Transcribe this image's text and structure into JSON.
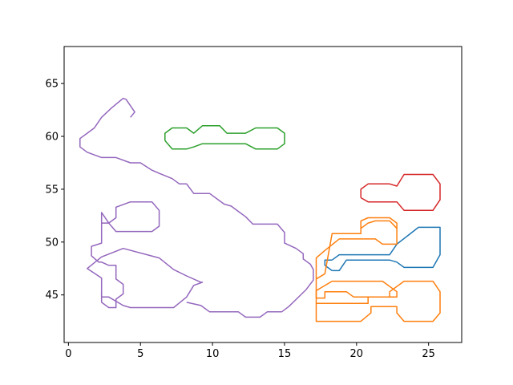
{
  "chart_data": {
    "type": "line",
    "title": "",
    "xlabel": "",
    "ylabel": "",
    "xlim": [
      -0.3,
      27.3
    ],
    "ylim": [
      40.5,
      68.5
    ],
    "xticks": [
      0,
      5,
      10,
      15,
      20,
      25
    ],
    "yticks": [
      45,
      50,
      55,
      60,
      65
    ],
    "xtick_labels": [
      "0",
      "5",
      "10",
      "15",
      "20",
      "25"
    ],
    "ytick_labels": [
      "45",
      "50",
      "55",
      "60",
      "65"
    ],
    "grid": false,
    "legend": "none",
    "series": [
      {
        "color": "#1f77b4",
        "x": [
          18.3,
          18.8,
          20.3,
          22.3,
          22.8,
          24.3,
          25.8,
          25.8,
          25.3,
          23.3,
          22.8,
          22.3,
          19.3,
          18.8,
          18.3
        ],
        "y": [
          48.3,
          48.8,
          48.8,
          48.8,
          49.8,
          51.4,
          51.4,
          48.8,
          47.6,
          47.6,
          48.1,
          48.3,
          48.3,
          47.3,
          47.3
        ]
      },
      {
        "color": "#1f77b4",
        "x": [
          18.3,
          17.8,
          17.8,
          18.3
        ],
        "y": [
          47.3,
          47.8,
          48.3,
          48.3
        ]
      },
      {
        "color": "#ff7f0e",
        "x": [
          17.2,
          17.2,
          18.3,
          18.3,
          19.3,
          19.8,
          21.8,
          22.8,
          22.8,
          22.3,
          19.8,
          19.3,
          18.3,
          17.8,
          17.8,
          17.2
        ],
        "y": [
          44.7,
          45.4,
          46.3,
          46.3,
          46.3,
          46.3,
          46.3,
          45.3,
          44.8,
          44.8,
          44.8,
          45.3,
          45.3,
          45.3,
          44.7,
          44.7
        ]
      },
      {
        "color": "#ff7f0e",
        "x": [
          17.2,
          17.2,
          18.3,
          20.3,
          21.0,
          21.0,
          22.8,
          22.8,
          23.3,
          25.3,
          25.8,
          25.8,
          25.3,
          23.3,
          22.3,
          22.3,
          20.8,
          20.8,
          17.2
        ],
        "y": [
          44.7,
          42.5,
          42.5,
          42.5,
          43.3,
          43.9,
          43.9,
          43.3,
          42.5,
          42.5,
          43.3,
          45.3,
          46.3,
          46.3,
          45.3,
          44.8,
          44.8,
          44.2,
          44.2
        ]
      },
      {
        "color": "#ff7f0e",
        "x": [
          17.2,
          17.2,
          17.8,
          17.8,
          18.8,
          21.3,
          21.8,
          22.8,
          22.8,
          22.3,
          21.3,
          20.8,
          20.3,
          20.3,
          18.3,
          17.8,
          17.2
        ],
        "y": [
          44.7,
          48.5,
          49.2,
          49.2,
          50.3,
          50.3,
          49.8,
          49.8,
          51.3,
          52.0,
          52.0,
          51.8,
          51.3,
          50.8,
          50.8,
          47.0,
          46.5
        ]
      },
      {
        "color": "#ff7f0e",
        "x": [
          20.3,
          20.3,
          20.8,
          22.3,
          22.8,
          22.8
        ],
        "y": [
          51.3,
          52.0,
          52.3,
          52.3,
          51.8,
          51.3
        ]
      },
      {
        "color": "#2ca02c",
        "x": [
          6.7,
          6.7,
          7.2,
          8.2,
          8.7,
          9.3,
          9.9,
          10.5,
          11.0,
          11.5,
          12.3,
          13.0,
          14.5,
          15.0,
          15.0,
          14.5,
          13.0,
          12.3,
          11.5,
          11.0,
          10.5,
          9.9,
          9.3,
          8.7,
          8.2,
          7.2,
          6.7
        ],
        "y": [
          59.6,
          60.3,
          60.8,
          60.8,
          60.3,
          61.0,
          61.0,
          61.0,
          60.3,
          60.3,
          60.3,
          60.8,
          60.8,
          60.3,
          59.3,
          58.8,
          58.8,
          59.3,
          59.3,
          59.3,
          59.3,
          59.3,
          59.3,
          59.0,
          58.8,
          58.8,
          59.6
        ]
      },
      {
        "color": "#d62728",
        "x": [
          20.3,
          20.3,
          20.8,
          22.3,
          22.8,
          23.3,
          25.3,
          25.8,
          25.8,
          25.3,
          23.3,
          22.8,
          20.8,
          20.3
        ],
        "y": [
          54.2,
          55.0,
          55.5,
          55.5,
          55.3,
          56.4,
          56.4,
          55.5,
          54.0,
          53.0,
          53.0,
          53.8,
          53.8,
          54.2
        ]
      },
      {
        "color": "#9467bd",
        "x": [
          4.3,
          4.6,
          4.0,
          3.8,
          3.0,
          2.3,
          1.8,
          1.3,
          0.8,
          0.8,
          1.3,
          2.3,
          3.3,
          4.3,
          5.0,
          5.8,
          6.3,
          7.2,
          7.7,
          8.2,
          8.7,
          9.2,
          9.8,
          10.8,
          11.3,
          11.8,
          12.3,
          12.8,
          14.5,
          15.0,
          15.0,
          15.8,
          16.3,
          16.3,
          16.8,
          17.0,
          17.0,
          16.5,
          15.3,
          14.8,
          13.8,
          13.3,
          12.3,
          11.8,
          9.8,
          9.2,
          8.2
        ],
        "y": [
          61.8,
          62.3,
          63.5,
          63.6,
          62.7,
          61.8,
          60.8,
          60.3,
          59.8,
          59.0,
          58.5,
          58.0,
          58.0,
          57.5,
          57.5,
          56.8,
          56.5,
          56.0,
          55.5,
          55.5,
          54.6,
          54.6,
          54.6,
          53.6,
          53.4,
          52.9,
          52.4,
          51.7,
          51.7,
          50.9,
          49.9,
          49.4,
          48.9,
          48.4,
          47.9,
          47.4,
          46.4,
          45.5,
          43.9,
          43.4,
          43.4,
          42.9,
          42.9,
          43.4,
          43.4,
          44.0,
          44.3
        ]
      },
      {
        "color": "#9467bd",
        "x": [
          2.8,
          3.3,
          3.3,
          4.3,
          5.8,
          6.3,
          6.3,
          5.8,
          4.3,
          3.3,
          2.8,
          2.3,
          2.3,
          2.8
        ],
        "y": [
          51.8,
          52.3,
          53.3,
          53.8,
          53.8,
          53.0,
          51.5,
          51.0,
          51.0,
          51.0,
          51.8,
          51.8,
          52.8,
          51.8
        ]
      },
      {
        "color": "#9467bd",
        "x": [
          2.3,
          2.3,
          1.6,
          1.6,
          2.1,
          2.3,
          2.8,
          3.3,
          3.3,
          3.3,
          3.8,
          3.8,
          3.3,
          3.3,
          2.8,
          2.3,
          2.3
        ],
        "y": [
          51.8,
          49.9,
          49.6,
          48.7,
          48.1,
          48.1,
          47.8,
          47.8,
          46.5,
          46.5,
          46.0,
          45.1,
          44.6,
          43.8,
          43.8,
          44.3,
          45.3
        ]
      },
      {
        "color": "#9467bd",
        "x": [
          2.3,
          2.3,
          1.3,
          1.3,
          2.3,
          3.8,
          6.3,
          7.3,
          8.2,
          9.2,
          9.3,
          8.7,
          8.2,
          7.3,
          6.3,
          4.3,
          3.8,
          2.8,
          2.3,
          2.3
        ],
        "y": [
          45.3,
          46.6,
          47.5,
          47.5,
          48.6,
          49.4,
          48.5,
          47.4,
          46.8,
          46.2,
          46.2,
          45.9,
          44.8,
          43.8,
          43.8,
          43.8,
          44.0,
          44.8,
          44.8,
          45.3
        ]
      }
    ]
  }
}
